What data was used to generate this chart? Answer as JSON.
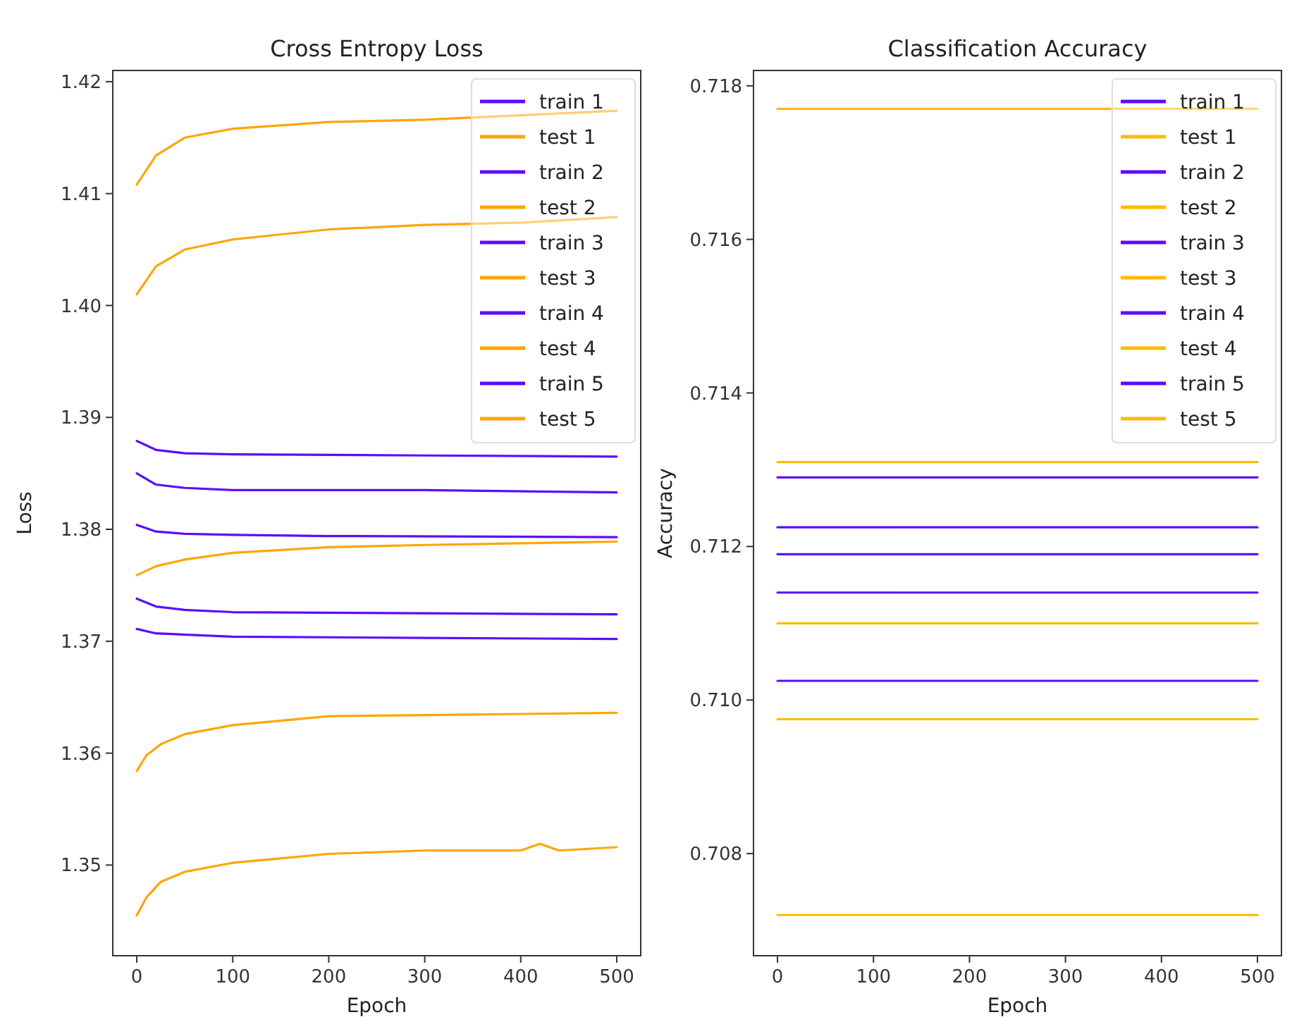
{
  "chart_data": [
    {
      "type": "line",
      "title": "Cross Entropy Loss",
      "xlabel": "Epoch",
      "ylabel": "Loss",
      "xlim": [
        -25,
        525
      ],
      "xticks": [
        0,
        100,
        200,
        300,
        400,
        500
      ],
      "ylim": [
        1.3419,
        1.421
      ],
      "yticks": [
        1.35,
        1.36,
        1.37,
        1.38,
        1.39,
        {
          "value": 1.4,
          "label": "1.40"
        },
        1.41,
        1.42
      ],
      "legend": "top right",
      "series": [
        {
          "name": "train 1",
          "color": "#5b0cff",
          "x": [
            0,
            20,
            50,
            100,
            300,
            500
          ],
          "values": [
            1.3879,
            1.3871,
            1.3868,
            1.3867,
            1.3866,
            1.3865
          ]
        },
        {
          "name": "test 1",
          "color": "#ffa500",
          "x": [
            0,
            20,
            50,
            100,
            200,
            300,
            500
          ],
          "values": [
            1.4108,
            1.4134,
            1.415,
            1.4158,
            1.4164,
            1.4166,
            1.4174
          ]
        },
        {
          "name": "train 2",
          "color": "#5b0cff",
          "x": [
            0,
            20,
            50,
            100,
            300,
            500
          ],
          "values": [
            1.385,
            1.384,
            1.3837,
            1.3835,
            1.3835,
            1.3833
          ]
        },
        {
          "name": "test 2",
          "color": "#ffa500",
          "x": [
            0,
            20,
            50,
            100,
            200,
            300,
            400,
            500
          ],
          "values": [
            1.401,
            1.4035,
            1.405,
            1.4059,
            1.4068,
            1.4072,
            1.4074,
            1.4079
          ]
        },
        {
          "name": "train 3",
          "color": "#5b0cff",
          "x": [
            0,
            20,
            50,
            100,
            200,
            500
          ],
          "values": [
            1.3804,
            1.3798,
            1.3796,
            1.3795,
            1.3794,
            1.3793
          ]
        },
        {
          "name": "test 3",
          "color": "#ffa500",
          "x": [
            0,
            20,
            50,
            100,
            200,
            300,
            500
          ],
          "values": [
            1.3759,
            1.3767,
            1.3773,
            1.3779,
            1.3784,
            1.3786,
            1.3789
          ]
        },
        {
          "name": "train 4",
          "color": "#5b0cff",
          "x": [
            0,
            20,
            50,
            100,
            300,
            500
          ],
          "values": [
            1.3738,
            1.3731,
            1.3728,
            1.3726,
            1.3725,
            1.3724
          ]
        },
        {
          "name": "test 4",
          "color": "#ffa500",
          "x": [
            0,
            10,
            25,
            50,
            100,
            200,
            300,
            400,
            500
          ],
          "values": [
            1.3584,
            1.3598,
            1.3608,
            1.3617,
            1.3625,
            1.3633,
            1.3634,
            1.3635,
            1.3636
          ]
        },
        {
          "name": "train 5",
          "color": "#5b0cff",
          "x": [
            0,
            20,
            100,
            300,
            500
          ],
          "values": [
            1.3711,
            1.3707,
            1.3704,
            1.3703,
            1.3702
          ]
        },
        {
          "name": "test 5",
          "color": "#ffa500",
          "x": [
            0,
            10,
            25,
            50,
            100,
            150,
            200,
            300,
            400,
            420,
            440,
            500
          ],
          "values": [
            1.3455,
            1.3471,
            1.3485,
            1.3494,
            1.3502,
            1.3506,
            1.351,
            1.3513,
            1.3513,
            1.3519,
            1.3513,
            1.3516
          ]
        }
      ]
    },
    {
      "type": "line",
      "title": "Classification Accuracy",
      "xlabel": "Epoch",
      "ylabel": "Accuracy",
      "xlim": [
        -25,
        525
      ],
      "xticks": [
        0,
        100,
        200,
        300,
        400,
        500
      ],
      "ylim": [
        0.70667,
        0.7182
      ],
      "yticks": [
        0.708,
        {
          "value": 0.71,
          "label": "0.710"
        },
        0.712,
        0.714,
        0.716,
        0.718
      ],
      "legend": "top right",
      "series": [
        {
          "name": "train 1",
          "color": "#5b0cff",
          "x": [
            0,
            500
          ],
          "values": [
            0.7129,
            0.7129
          ]
        },
        {
          "name": "test 1",
          "color": "#ffbb00",
          "x": [
            0,
            500
          ],
          "values": [
            0.7177,
            0.7177
          ]
        },
        {
          "name": "train 2",
          "color": "#5b0cff",
          "x": [
            0,
            500
          ],
          "values": [
            0.71225,
            0.71225
          ]
        },
        {
          "name": "test 2",
          "color": "#ffbb00",
          "x": [
            0,
            500
          ],
          "values": [
            0.7131,
            0.7131
          ]
        },
        {
          "name": "train 3",
          "color": "#5b0cff",
          "x": [
            0,
            500
          ],
          "values": [
            0.7119,
            0.7119
          ]
        },
        {
          "name": "test 3",
          "color": "#ffbb00",
          "x": [
            0,
            500
          ],
          "values": [
            0.711,
            0.711
          ]
        },
        {
          "name": "train 4",
          "color": "#5b0cff",
          "x": [
            0,
            500
          ],
          "values": [
            0.7114,
            0.7114
          ]
        },
        {
          "name": "test 4",
          "color": "#ffbb00",
          "x": [
            0,
            500
          ],
          "values": [
            0.70975,
            0.70975
          ]
        },
        {
          "name": "train 5",
          "color": "#5b0cff",
          "x": [
            0,
            500
          ],
          "values": [
            0.71025,
            0.71025
          ]
        },
        {
          "name": "test 5",
          "color": "#ffbb00",
          "x": [
            0,
            500
          ],
          "values": [
            0.7072,
            0.7072
          ]
        }
      ]
    }
  ]
}
